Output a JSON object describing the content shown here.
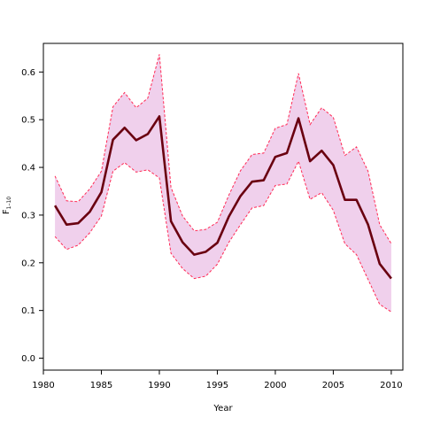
{
  "chart_data": {
    "type": "line",
    "xlabel": "Year",
    "ylabel": "F",
    "ylabel_subscript": "1–10",
    "xlim": [
      1980,
      2011
    ],
    "ylim": [
      -0.025,
      0.66
    ],
    "xticks": [
      1980,
      1985,
      1990,
      1995,
      2000,
      2005,
      2010
    ],
    "yticks": [
      0.0,
      0.1,
      0.2,
      0.3,
      0.4,
      0.5,
      0.6
    ],
    "x": [
      1981,
      1982,
      1983,
      1984,
      1985,
      1986,
      1987,
      1988,
      1989,
      1990,
      1991,
      1992,
      1993,
      1994,
      1995,
      1996,
      1997,
      1998,
      1999,
      2000,
      2001,
      2002,
      2003,
      2004,
      2005,
      2006,
      2007,
      2008,
      2009,
      2010
    ],
    "series": [
      {
        "values": [
          0.32,
          0.28,
          0.283,
          0.307,
          0.348,
          0.458,
          0.483,
          0.457,
          0.47,
          0.507,
          0.287,
          0.243,
          0.217,
          0.223,
          0.242,
          0.297,
          0.34,
          0.37,
          0.373,
          0.422,
          0.43,
          0.503,
          0.413,
          0.435,
          0.405,
          0.332,
          0.332,
          0.28,
          0.198,
          0.167
        ]
      }
    ],
    "band": {
      "upper": [
        0.382,
        0.33,
        0.328,
        0.355,
        0.392,
        0.527,
        0.557,
        0.525,
        0.545,
        0.637,
        0.358,
        0.298,
        0.267,
        0.27,
        0.285,
        0.342,
        0.393,
        0.427,
        0.43,
        0.482,
        0.49,
        0.597,
        0.49,
        0.525,
        0.505,
        0.425,
        0.443,
        0.392,
        0.28,
        0.24
      ],
      "lower": [
        0.255,
        0.228,
        0.237,
        0.263,
        0.298,
        0.392,
        0.41,
        0.39,
        0.395,
        0.378,
        0.22,
        0.188,
        0.167,
        0.172,
        0.197,
        0.243,
        0.28,
        0.315,
        0.32,
        0.362,
        0.365,
        0.413,
        0.333,
        0.347,
        0.31,
        0.24,
        0.217,
        0.165,
        0.113,
        0.097
      ]
    },
    "colors": {
      "line": "#6a0010",
      "band_fill": "#f0d0ec",
      "band_edge": "#ff2a55"
    },
    "grid": false
  }
}
